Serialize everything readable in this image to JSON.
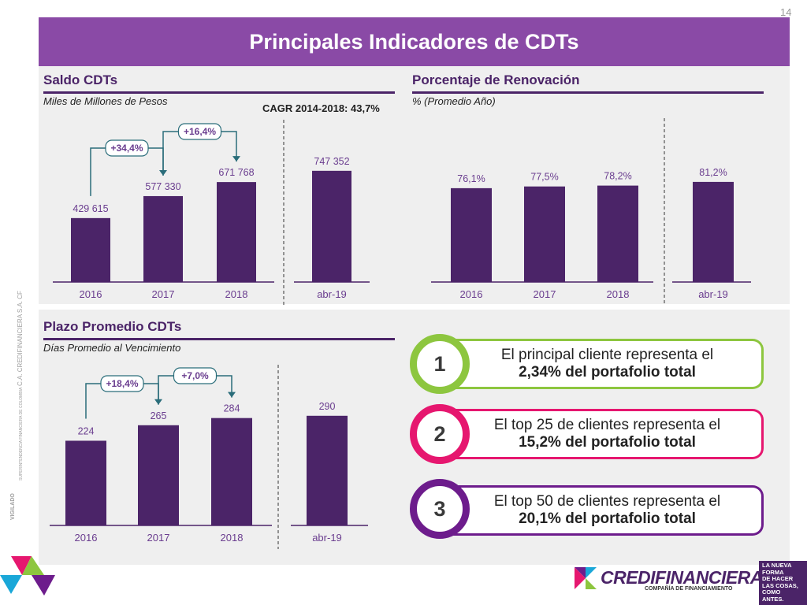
{
  "page_number": "14",
  "title": "Principales Indicadores de CDTs",
  "colors": {
    "bar": "#4b2468",
    "value_text": "#6a3d8f",
    "header_bg": "#8a4aa6",
    "card_green": "#8dc63f",
    "card_pink": "#e6176f",
    "card_purple": "#6d1c8c",
    "panel_bg": "#efefef"
  },
  "saldo": {
    "title": "Saldo CDTs",
    "subtitle": "Miles de Millones de Pesos",
    "cagr": "CAGR 2014-2018: 43,7%",
    "growth1": "+34,4%",
    "growth2": "+16,4%"
  },
  "renovacion": {
    "title": "Porcentaje de Renovación",
    "subtitle": "% (Promedio Año)"
  },
  "plazo": {
    "title": "Plazo Promedio CDTs",
    "subtitle": "Días Promedio al Vencimiento",
    "growth1": "+18,4%",
    "growth2": "+7,0%"
  },
  "chart_data": [
    {
      "type": "bar",
      "categories": [
        "2016",
        "2017",
        "2018",
        "abr-19"
      ],
      "values": [
        429615,
        577330,
        671768,
        747352
      ],
      "labels": [
        "429 615",
        "577 330",
        "671 768",
        "747 352"
      ],
      "title": "Saldo CDTs",
      "ylim": [
        0,
        900000
      ]
    },
    {
      "type": "bar",
      "categories": [
        "2016",
        "2017",
        "2018",
        "abr-19"
      ],
      "values": [
        76.1,
        77.5,
        78.2,
        81.2
      ],
      "labels": [
        "76,1%",
        "77,5%",
        "78,2%",
        "81,2%"
      ],
      "title": "Porcentaje de Renovación",
      "ylim": [
        0,
        115
      ]
    },
    {
      "type": "bar",
      "categories": [
        "2016",
        "2017",
        "2018",
        "abr-19"
      ],
      "values": [
        224,
        265,
        284,
        290
      ],
      "labels": [
        "224",
        "265",
        "284",
        "290"
      ],
      "title": "Plazo Promedio CDTs",
      "ylim": [
        0,
        350
      ]
    }
  ],
  "highlights": [
    {
      "number": "1",
      "line1": "El principal cliente representa el",
      "line2": "2,34% del portafolio total"
    },
    {
      "number": "2",
      "line1": "El top 25 de clientes representa el",
      "line2": "15,2% del portafolio total"
    },
    {
      "number": "3",
      "line1": "El top 50 de clientes representa el",
      "line2": "20,1% del portafolio total"
    }
  ],
  "footer": {
    "brand": "CREDIFINANCIERA",
    "brand_sub": "COMPAÑÍA DE FINANCIAMIENTO",
    "slogan": [
      "LA NUEVA",
      "FORMA",
      "DE HACER",
      "LAS COSAS,",
      "COMO",
      "ANTES."
    ]
  },
  "side_text": {
    "company": "C.A. CREDIFINANCIERA S.A. CF",
    "super": "SUPERINTENDENCIA FINANCIERA DE COLOMBIA",
    "vigilado": "VIGILADO"
  }
}
